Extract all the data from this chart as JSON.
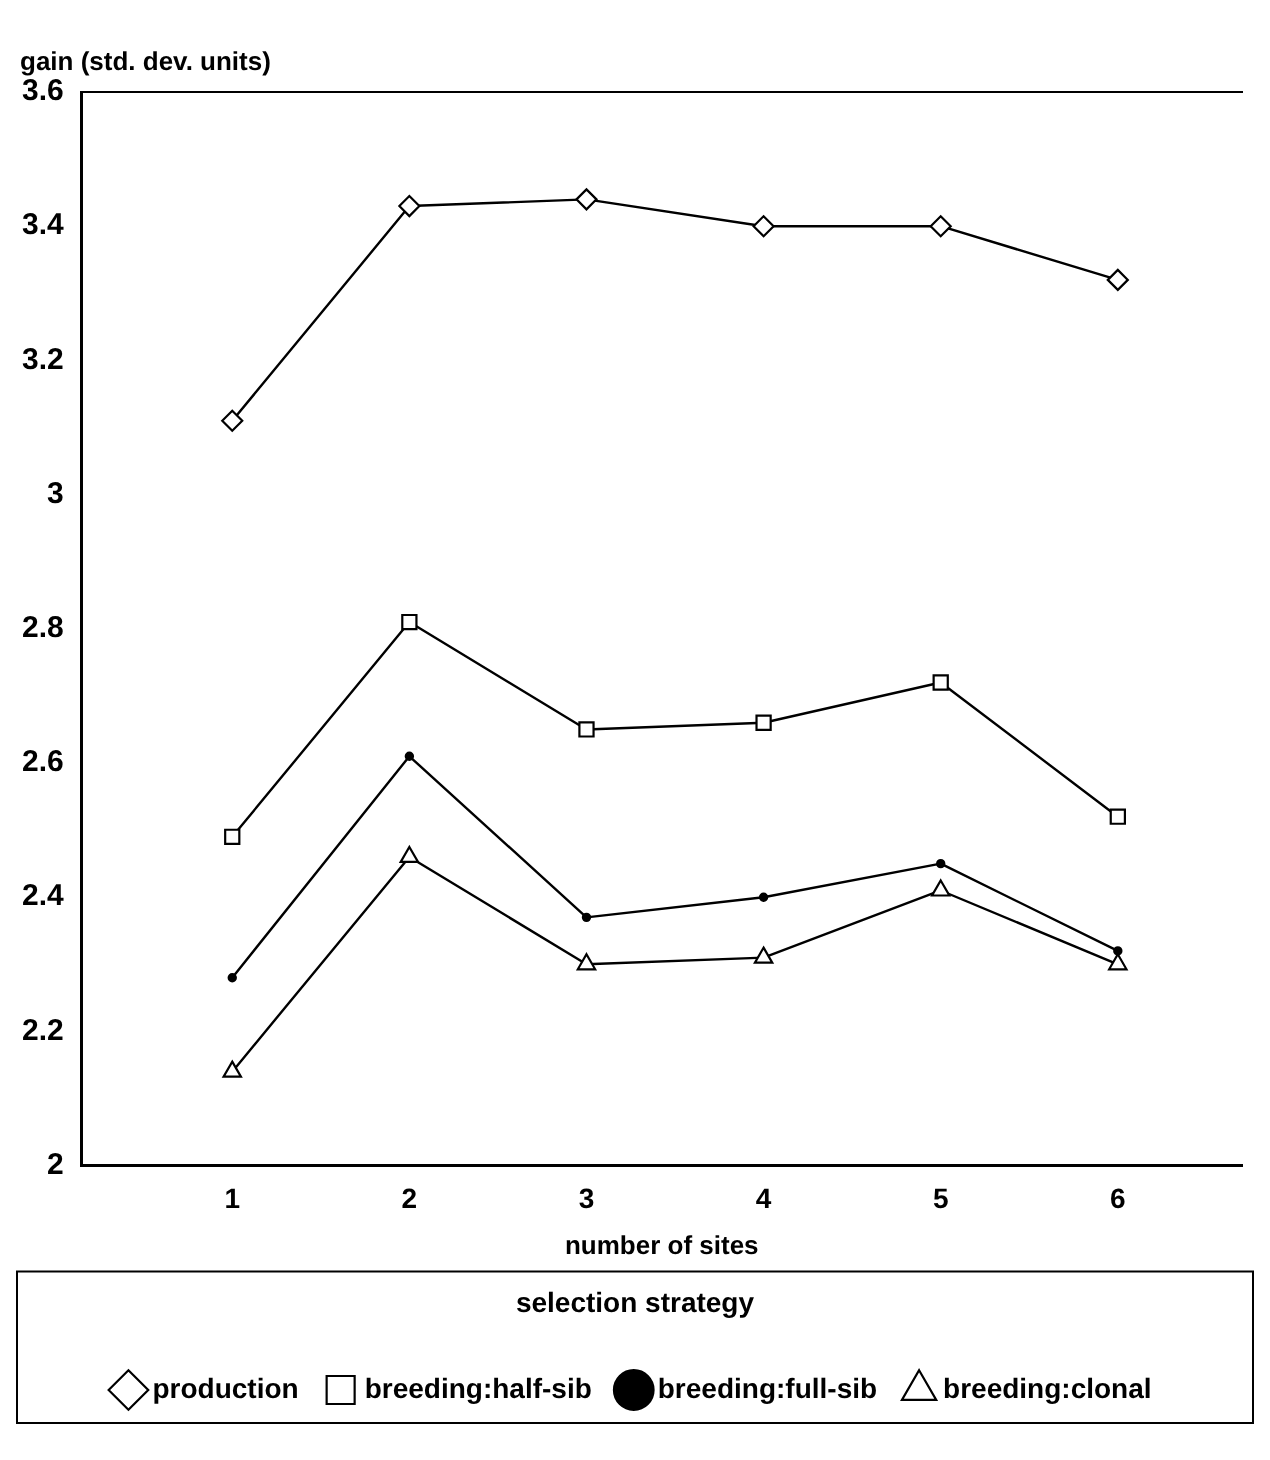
{
  "chart_data": {
    "type": "line",
    "ylabel": "gain (std. dev. units)",
    "xlabel": "number of sites",
    "legend_title": "selection strategy",
    "legend": "bottom",
    "x": [
      1,
      2,
      3,
      4,
      5,
      6
    ],
    "xlim": [
      0.15,
      6.7
    ],
    "xticks": [
      1,
      2,
      3,
      4,
      5,
      6
    ],
    "ylim": [
      2,
      3.6
    ],
    "yticks": [
      2,
      2.2,
      2.4,
      2.6,
      2.8,
      3,
      3.2,
      3.4,
      3.6
    ],
    "grid": false,
    "line_style": "solid",
    "series": [
      {
        "name": "production",
        "color": "#000000",
        "marker": "diamond",
        "values": [
          3.11,
          3.43,
          3.44,
          3.4,
          3.4,
          3.32
        ]
      },
      {
        "name": "breeding:half-sib",
        "color": "#000000",
        "marker": "square",
        "values": [
          2.49,
          2.81,
          2.65,
          2.66,
          2.72,
          2.52
        ]
      },
      {
        "name": "breeding:full-sib",
        "color": "#000000",
        "marker": "circle",
        "values": [
          2.28,
          2.61,
          2.37,
          2.4,
          2.45,
          2.32
        ]
      },
      {
        "name": "breeding:clonal",
        "color": "#000000",
        "marker": "triangle",
        "values": [
          2.14,
          2.46,
          2.3,
          2.31,
          2.41,
          2.3
        ]
      }
    ]
  }
}
